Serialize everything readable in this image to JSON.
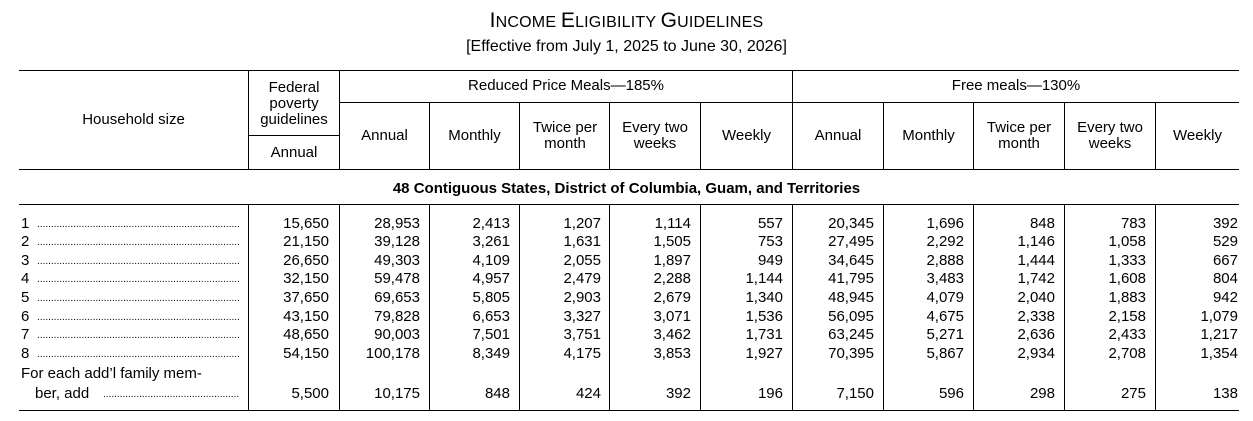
{
  "title": {
    "prefix1": "I",
    "rest1": "NCOME ",
    "prefix2": "E",
    "rest2": "LIGIBILITY ",
    "prefix3": "G",
    "rest3": "UIDELINES"
  },
  "subtitle": "[Effective from July 1, 2025 to June 30, 2026]",
  "headers": {
    "household_size": "Household size",
    "federal_poverty": "Federal poverty guidelines",
    "federal_annual": "Annual",
    "reduced_group": "Reduced Price Meals—185%",
    "free_group": "Free meals—130%",
    "annual": "Annual",
    "monthly": "Monthly",
    "twice_per_month": "Twice per month",
    "every_two_weeks": "Every two weeks",
    "weekly": "Weekly"
  },
  "section_title": "48 Contiguous States, District of Columbia, Guam, and Territories",
  "rows": [
    {
      "size": "1",
      "values": [
        "15,650",
        "28,953",
        "2,413",
        "1,207",
        "1,114",
        "557",
        "20,345",
        "1,696",
        "848",
        "783",
        "392"
      ]
    },
    {
      "size": "2",
      "values": [
        "21,150",
        "39,128",
        "3,261",
        "1,631",
        "1,505",
        "753",
        "27,495",
        "2,292",
        "1,146",
        "1,058",
        "529"
      ]
    },
    {
      "size": "3",
      "values": [
        "26,650",
        "49,303",
        "4,109",
        "2,055",
        "1,897",
        "949",
        "34,645",
        "2,888",
        "1,444",
        "1,333",
        "667"
      ]
    },
    {
      "size": "4",
      "values": [
        "32,150",
        "59,478",
        "4,957",
        "2,479",
        "2,288",
        "1,144",
        "41,795",
        "3,483",
        "1,742",
        "1,608",
        "804"
      ]
    },
    {
      "size": "5",
      "values": [
        "37,650",
        "69,653",
        "5,805",
        "2,903",
        "2,679",
        "1,340",
        "48,945",
        "4,079",
        "2,040",
        "1,883",
        "942"
      ]
    },
    {
      "size": "6",
      "values": [
        "43,150",
        "79,828",
        "6,653",
        "3,327",
        "3,071",
        "1,536",
        "56,095",
        "4,675",
        "2,338",
        "2,158",
        "1,079"
      ]
    },
    {
      "size": "7",
      "values": [
        "48,650",
        "90,003",
        "7,501",
        "3,751",
        "3,462",
        "1,731",
        "63,245",
        "5,271",
        "2,636",
        "2,433",
        "1,217"
      ]
    },
    {
      "size": "8",
      "values": [
        "54,150",
        "100,178",
        "8,349",
        "4,175",
        "3,853",
        "1,927",
        "70,395",
        "5,867",
        "2,934",
        "2,708",
        "1,354"
      ]
    }
  ],
  "additional": {
    "label_line1": "For each add’l family mem-",
    "label_line2": "ber, add",
    "values": [
      "5,500",
      "10,175",
      "848",
      "424",
      "392",
      "196",
      "7,150",
      "596",
      "298",
      "275",
      "138"
    ]
  }
}
